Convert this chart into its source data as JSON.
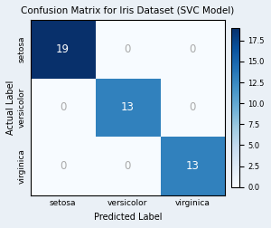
{
  "title": "Confusion Matrix for Iris Dataset (SVC Model)",
  "matrix": [
    [
      19,
      0,
      0
    ],
    [
      0,
      13,
      0
    ],
    [
      0,
      0,
      13
    ]
  ],
  "classes": [
    "setosa",
    "versicolor",
    "virginica"
  ],
  "xlabel": "Predicted Label",
  "ylabel": "Actual Label",
  "cmap": "Blues",
  "vmin": 0,
  "vmax": 19,
  "text_color_threshold": 10,
  "text_color_high": "white",
  "text_color_low": "#aaaaaa",
  "title_fontsize": 7.5,
  "label_fontsize": 7.0,
  "tick_fontsize": 6.5,
  "annot_fontsize": 8.5,
  "colorbar_tick_fontsize": 6.0,
  "background_color": "#eaf0f6"
}
